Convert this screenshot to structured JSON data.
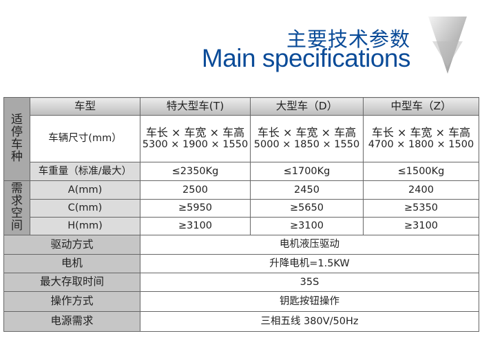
{
  "header": {
    "title_cn": "主要技术参数",
    "title_en": "Main specifications",
    "chevron_icon": "chevron-down-icon"
  },
  "table": {
    "group_car": "适\n停\n车\n种",
    "group_space": "需\n求\n空\n间",
    "col_header": "车型",
    "columns": [
      "特大型车(T)",
      "大型车（D）",
      "中型车（Z）"
    ],
    "size_label": "车辆尺寸(mm）",
    "size_formula": "车长 × 车宽 × 车高",
    "sizes": [
      "5300 × 1900 × 1550",
      "5000 × 1850 × 1550",
      "4700 × 1800 × 1500"
    ],
    "weight_label": "车重量（标准/最大）",
    "weights": [
      "≤2350Kg",
      "≤1700Kg",
      "≤1500Kg"
    ],
    "space_rows": [
      {
        "label": "A(mm)",
        "values": [
          "2500",
          "2450",
          "2400"
        ]
      },
      {
        "label": "C(mm)",
        "values": [
          "≥5950",
          "≥5650",
          "≥5350"
        ]
      },
      {
        "label": "H(mm)",
        "values": [
          "≥3100",
          "≥3100",
          "≥3100"
        ]
      }
    ],
    "common_rows": [
      {
        "label": "驱动方式",
        "value": "电机液压驱动"
      },
      {
        "label": "电机",
        "value": "升降电机=1.5KW"
      },
      {
        "label": "最大存取时间",
        "value": "35S"
      },
      {
        "label": "操作方式",
        "value": "钥匙按钮操作"
      },
      {
        "label": "电源需求",
        "value": "三相五线 380V/50Hz"
      }
    ]
  }
}
